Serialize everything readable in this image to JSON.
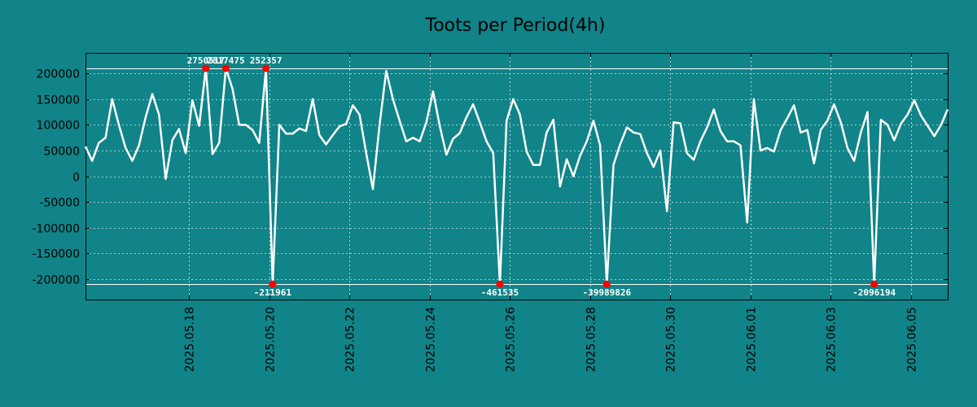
{
  "chart_data": {
    "type": "line",
    "title": "Toots per Period(4h)",
    "xlabel": "",
    "ylabel": "",
    "ylim": [
      -240000,
      240000
    ],
    "yticks": [
      200000,
      150000,
      100000,
      50000,
      0,
      -50000,
      -100000,
      -150000,
      -200000
    ],
    "ytick_labels": [
      "200000",
      "150000",
      "100000",
      "50000",
      "0",
      "-50000",
      "-100000",
      "-150000",
      "-200000"
    ],
    "xlim": [
      -15.5,
      113.5
    ],
    "xtick_positions": [
      0,
      12,
      24,
      36,
      48,
      60,
      72,
      84,
      96,
      108
    ],
    "xtick_labels": [
      "2025.05.18",
      "2025.05.20",
      "2025.05.22",
      "2025.05.24",
      "2025.05.26",
      "2025.05.28",
      "2025.05.30",
      "2025.06.01",
      "2025.06.03",
      "2025.06.05"
    ],
    "clip_lines": [
      210000,
      -210000
    ],
    "grid": true,
    "colors": {
      "background": "#108488",
      "line": "#ffffff",
      "marker": "#ff0000",
      "grid": "#d0e8e8"
    },
    "series": [
      {
        "name": "Toots",
        "x": [
          -15.5,
          -14.5,
          -13.5,
          -12.5,
          -11.5,
          -10.5,
          -9.5,
          -8.5,
          -7.5,
          -6.5,
          -5.5,
          -4.5,
          -3.5,
          -2.5,
          -1.5,
          -0.5,
          0.5,
          1.5,
          2.5,
          3.5,
          4.5,
          5.5,
          6.5,
          7.5,
          8.5,
          9.5,
          10.5,
          11.5,
          12.5,
          13.5,
          14.5,
          15.5,
          16.5,
          17.5,
          18.5,
          19.5,
          20.5,
          21.5,
          22.5,
          23.5,
          24.5,
          25.5,
          26.5,
          27.5,
          28.5,
          29.5,
          30.5,
          31.5,
          32.5,
          33.5,
          34.5,
          35.5,
          36.5,
          37.5,
          38.5,
          39.5,
          40.5,
          41.5,
          42.5,
          43.5,
          44.5,
          45.5,
          46.5,
          47.5,
          48.5,
          49.5,
          50.5,
          51.5,
          52.5,
          53.5,
          54.5,
          55.5,
          56.5,
          57.5,
          58.5,
          59.5,
          60.5,
          61.5,
          62.5,
          63.5,
          64.5,
          65.5,
          66.5,
          67.5,
          68.5,
          69.5,
          70.5,
          71.5,
          72.5,
          73.5,
          74.5,
          75.5,
          76.5,
          77.5,
          78.5,
          79.5,
          80.5,
          81.5,
          82.5,
          83.5,
          84.5,
          85.5,
          86.5,
          87.5,
          88.5,
          89.5,
          90.5,
          91.5,
          92.5,
          93.5,
          94.5,
          95.5,
          96.5,
          97.5,
          98.5,
          99.5,
          100.5,
          101.5,
          102.5,
          103.5,
          104.5,
          105.5,
          106.5,
          107.5,
          108.5,
          109.5,
          110.5,
          111.5,
          112.5,
          113.5
        ],
        "y": [
          58000,
          30000,
          65000,
          75000,
          150000,
          100000,
          55000,
          30000,
          60000,
          115000,
          160000,
          120000,
          -5000,
          70000,
          92000,
          45000,
          148000,
          98000,
          210000,
          43000,
          65000,
          210000,
          170000,
          100000,
          100000,
          90000,
          65000,
          210000,
          -210000,
          100000,
          83000,
          83000,
          93000,
          88000,
          150000,
          80000,
          62000,
          80000,
          97000,
          102000,
          138000,
          120000,
          45000,
          -25000,
          100000,
          205000,
          150000,
          108000,
          68000,
          75000,
          68000,
          105000,
          165000,
          98000,
          42000,
          73000,
          84000,
          115000,
          140000,
          105000,
          68000,
          45000,
          -210000,
          108000,
          150000,
          120000,
          48000,
          22000,
          22000,
          85000,
          110000,
          -20000,
          33000,
          0,
          40000,
          68000,
          108000,
          60000,
          -210000,
          22000,
          62000,
          95000,
          85000,
          82000,
          45000,
          18000,
          50000,
          -68000,
          105000,
          103000,
          45000,
          32000,
          68000,
          95000,
          130000,
          88000,
          68000,
          68000,
          60000,
          -90000,
          150000,
          50000,
          55000,
          48000,
          90000,
          113000,
          138000,
          85000,
          90000,
          25000,
          90000,
          108000,
          140000,
          105000,
          55000,
          30000,
          85000,
          125000,
          -210000,
          110000,
          100000,
          70000,
          102000,
          120000,
          148000,
          118000,
          98000,
          78000,
          100000,
          130000
        ]
      }
    ],
    "annotations": [
      {
        "label": "2750517",
        "x": 2.5,
        "y": 210000,
        "position": "above"
      },
      {
        "label": "2817475",
        "x": 5.5,
        "y": 210000,
        "position": "above"
      },
      {
        "label": "252357",
        "x": 11.5,
        "y": 210000,
        "position": "above"
      },
      {
        "label": "-211961",
        "x": 12.5,
        "y": -210000,
        "position": "below"
      },
      {
        "label": "-461535",
        "x": 46.5,
        "y": -210000,
        "position": "below"
      },
      {
        "label": "-39989826",
        "x": 62.5,
        "y": -210000,
        "position": "below"
      },
      {
        "label": "-2096194",
        "x": 102.5,
        "y": -210000,
        "position": "below"
      }
    ]
  }
}
